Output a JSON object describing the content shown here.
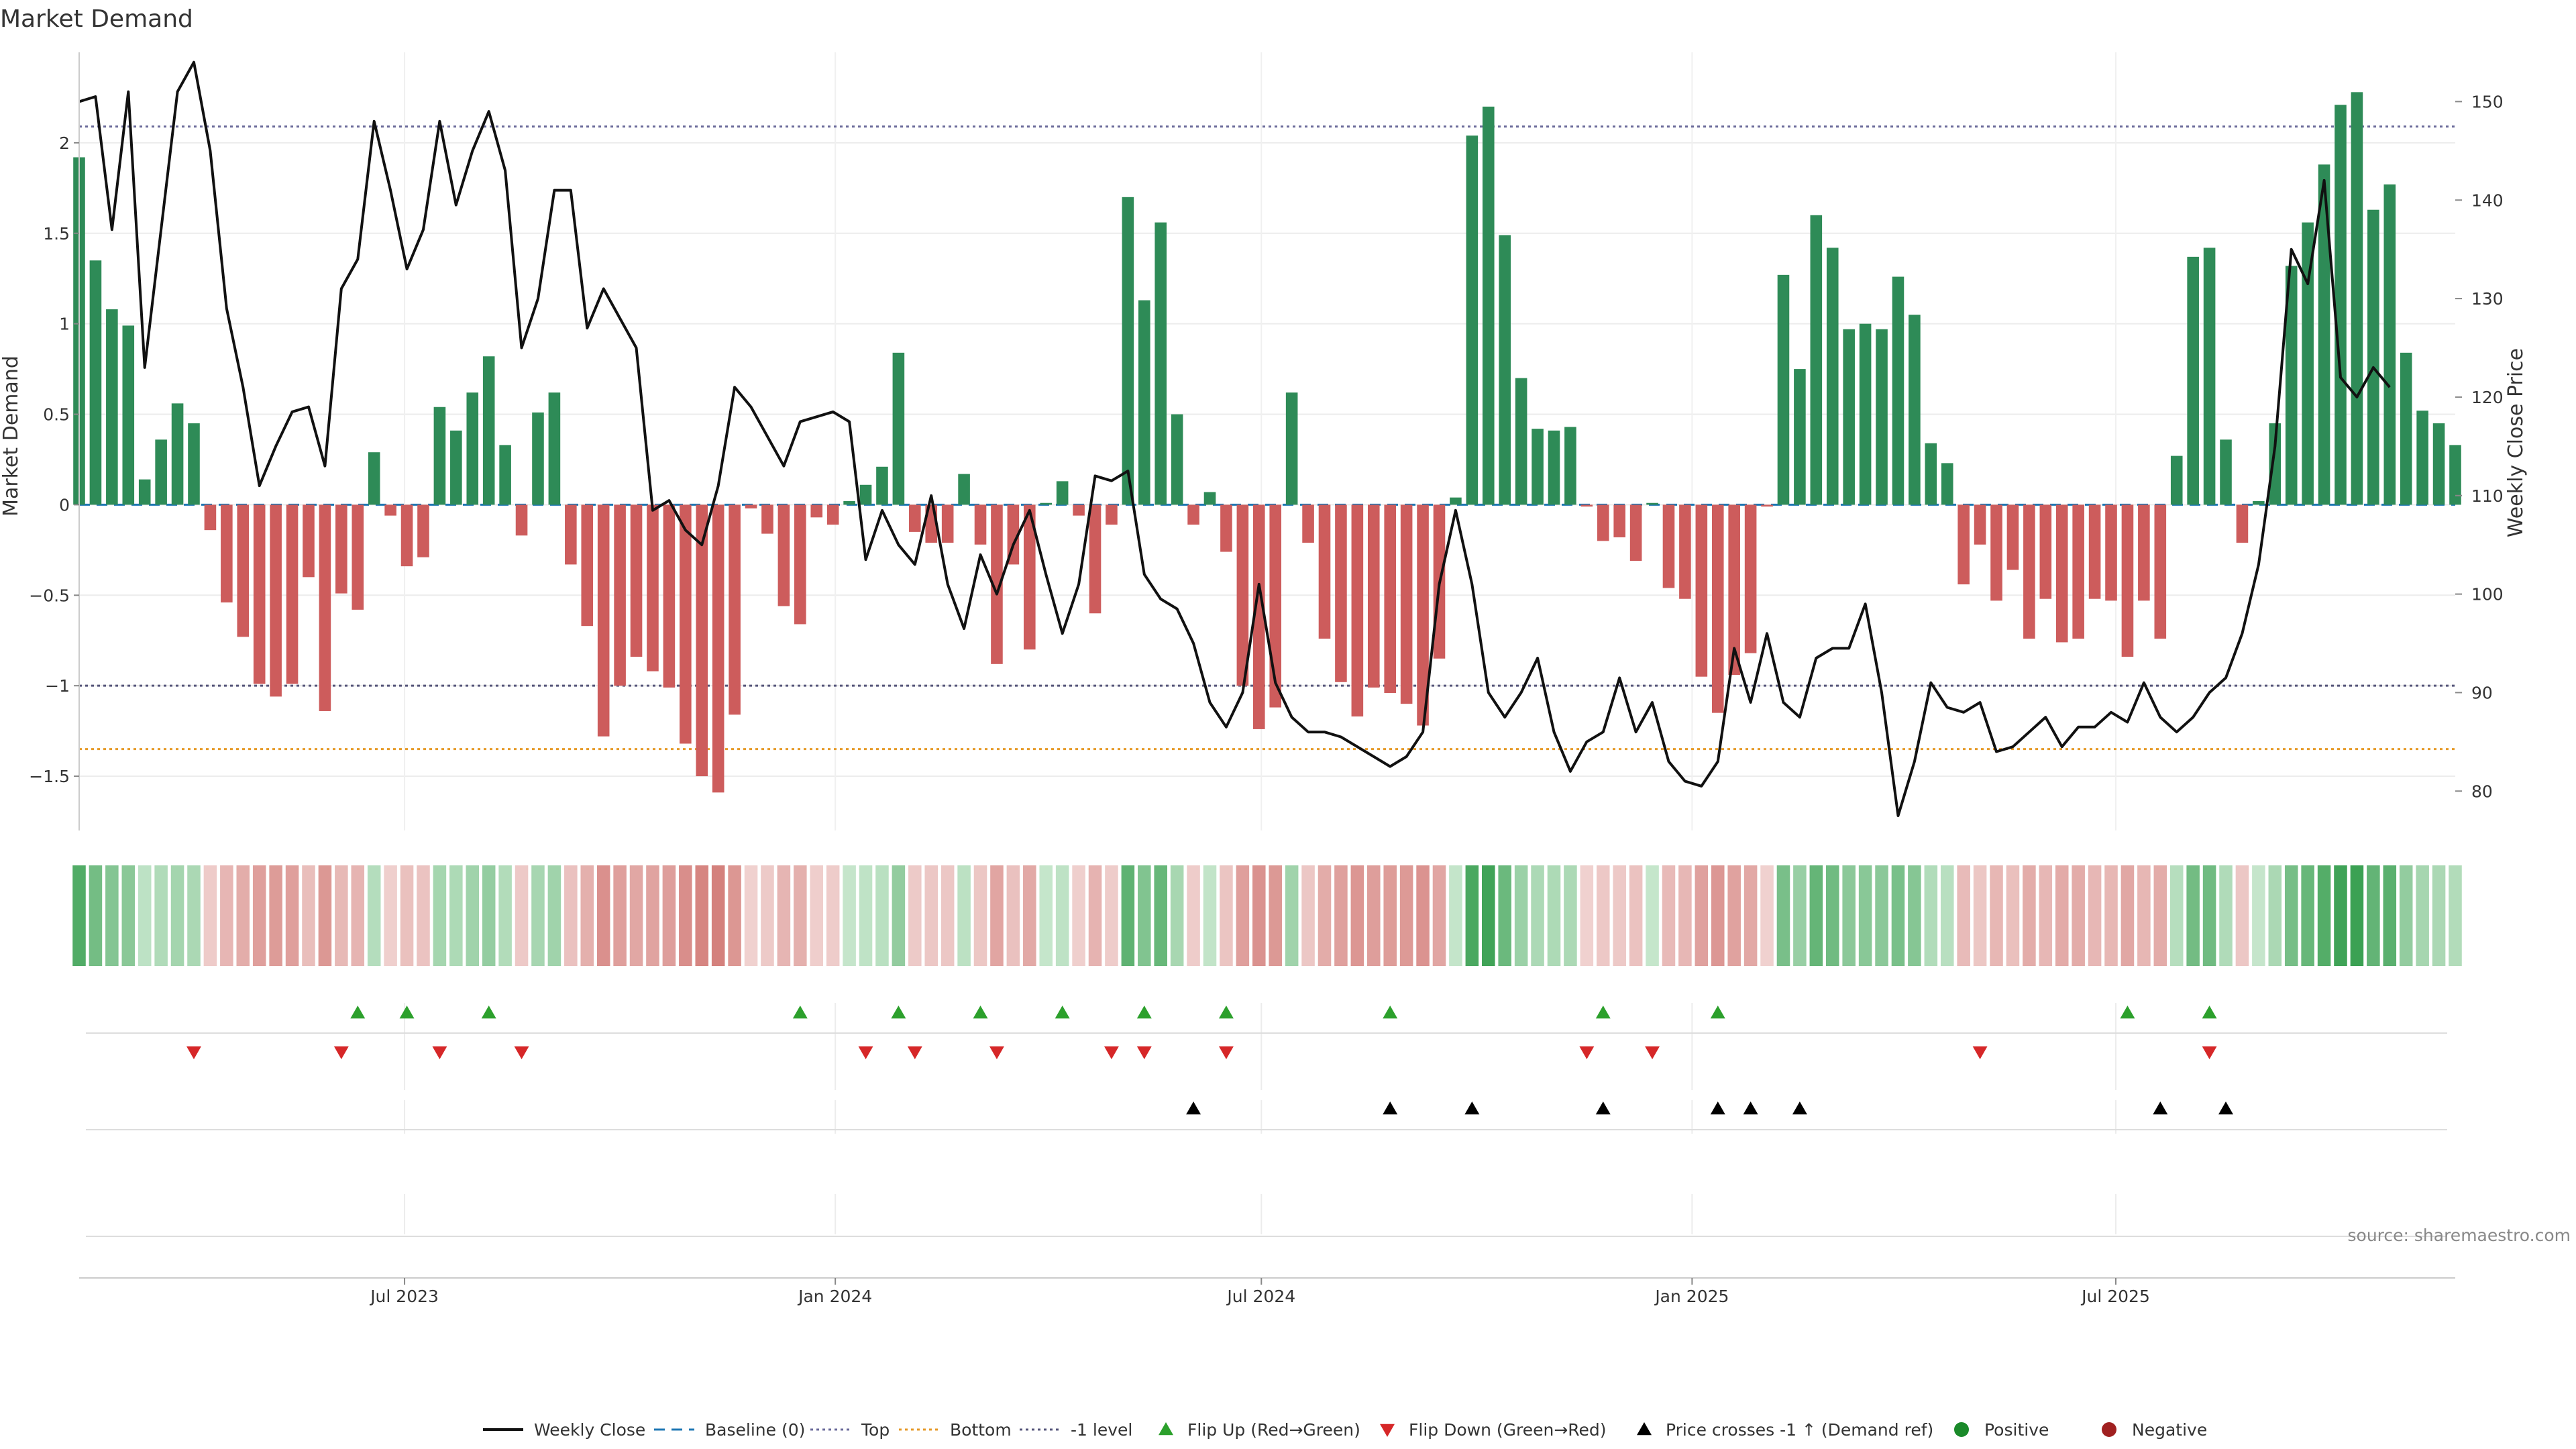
{
  "chart_data": {
    "type": "bar+line",
    "title": "Market Demand",
    "ylabel": "Market Demand",
    "ylabel_right": "Weekly Close Price",
    "ylim": [
      -1.8,
      2.5
    ],
    "ylim_right": [
      76,
      155
    ],
    "y_ticks": [
      -1.5,
      -1,
      -0.5,
      0,
      0.5,
      1,
      1.5,
      2
    ],
    "y_tick_labels": [
      "−1.5",
      "−1",
      "−0.5",
      "0",
      "0.5",
      "1",
      "1.5",
      "2"
    ],
    "y_right_ticks": [
      80,
      90,
      100,
      110,
      120,
      130,
      140,
      150
    ],
    "x_date_range": [
      "2023-02-12",
      "2025-11-23"
    ],
    "x_ticks": [
      {
        "date": "2023-07-01",
        "label": "Jul 2023"
      },
      {
        "date": "2024-01-01",
        "label": "Jan 2024"
      },
      {
        "date": "2024-07-01",
        "label": "Jul 2024"
      },
      {
        "date": "2025-01-01",
        "label": "Jan 2025"
      },
      {
        "date": "2025-07-01",
        "label": "Jul 2025"
      }
    ],
    "reference_lines": {
      "top": 2.09,
      "bottom": -1.35,
      "minus_one": -1
    },
    "start_date": "2023-02-12",
    "week_step_days": 7,
    "demand": [
      1.92,
      1.35,
      1.08,
      0.99,
      0.14,
      0.36,
      0.56,
      0.45,
      -0.14,
      -0.54,
      -0.73,
      -0.99,
      -1.06,
      -0.99,
      -0.4,
      -1.14,
      -0.49,
      -0.58,
      0.29,
      -0.06,
      -0.34,
      -0.29,
      0.54,
      0.41,
      0.62,
      0.82,
      0.33,
      -0.17,
      0.51,
      0.62,
      -0.33,
      -0.67,
      -1.28,
      -1.0,
      -0.84,
      -0.92,
      -1.01,
      -1.32,
      -1.5,
      -1.59,
      -1.16,
      -0.02,
      -0.16,
      -0.56,
      -0.66,
      -0.07,
      -0.11,
      0.02,
      0.11,
      0.21,
      0.84,
      -0.15,
      -0.21,
      -0.21,
      0.17,
      -0.22,
      -0.88,
      -0.33,
      -0.8,
      0.01,
      0.13,
      -0.06,
      -0.6,
      -0.11,
      1.7,
      1.13,
      1.56,
      0.5,
      -0.11,
      0.07,
      -0.26,
      -1.0,
      -1.24,
      -1.12,
      0.62,
      -0.21,
      -0.74,
      -0.98,
      -1.17,
      -1.01,
      -1.04,
      -1.1,
      -1.22,
      -0.85,
      0.04,
      2.04,
      2.2,
      1.49,
      0.7,
      0.42,
      0.41,
      0.43,
      -0.01,
      -0.2,
      -0.18,
      -0.31,
      0.01,
      -0.46,
      -0.52,
      -0.95,
      -1.15,
      -0.94,
      -0.82,
      -0.01,
      1.27,
      0.75,
      1.6,
      1.42,
      0.97,
      1.0,
      0.97,
      1.26,
      1.05,
      0.34,
      0.23,
      -0.44,
      -0.22,
      -0.53,
      -0.36,
      -0.74,
      -0.52,
      -0.76,
      -0.74,
      -0.52,
      -0.53,
      -0.84,
      -0.53,
      -0.74,
      0.27,
      1.37,
      1.42,
      0.36,
      -0.21,
      0.02,
      0.45,
      1.32,
      1.56,
      1.88,
      2.21,
      2.28,
      1.63,
      1.77,
      0.84,
      0.52,
      0.45,
      0.33
    ],
    "price": [
      150,
      150.5,
      137,
      151,
      123,
      137,
      151,
      154,
      145,
      129,
      121,
      111,
      115,
      118.5,
      119,
      113,
      131,
      134,
      148,
      141,
      133,
      137,
      148,
      139.5,
      145,
      149,
      143,
      125,
      130,
      141,
      141,
      127,
      131,
      128,
      125,
      108.5,
      109.5,
      106.5,
      105,
      111,
      121,
      119,
      116,
      113,
      117.5,
      118,
      118.5,
      117.5,
      103.5,
      108.5,
      105,
      103,
      110,
      101,
      96.5,
      104,
      100,
      105,
      108.5,
      102,
      96,
      101,
      112,
      111.5,
      112.5,
      102,
      99.5,
      98.5,
      95,
      89,
      86.5,
      90,
      101,
      91,
      87.5,
      86,
      86,
      85.5,
      84.5,
      83.5,
      82.5,
      83.5,
      86,
      101,
      108.5,
      101,
      90,
      87.5,
      90,
      93.5,
      86,
      82,
      85,
      86,
      91.5,
      86,
      89,
      83,
      81,
      80.5,
      83,
      94.5,
      89,
      96,
      89,
      87.5,
      93.5,
      94.5,
      94.5,
      99,
      90,
      77.5,
      83,
      91,
      88.5,
      88,
      89,
      84,
      84.5,
      86,
      87.5,
      84.5,
      86.5,
      86.5,
      88,
      87,
      91,
      87.5,
      86,
      87.5,
      90,
      91.5,
      96,
      103,
      115,
      135,
      131.5,
      142,
      122,
      120,
      123,
      121
    ],
    "flip_up_dates": [
      "2023-06-11",
      "2023-07-02",
      "2023-08-06",
      "2023-12-17",
      "2024-01-28",
      "2024-03-03",
      "2024-04-07",
      "2024-05-12",
      "2024-06-16",
      "2024-08-25",
      "2024-11-24",
      "2025-01-12",
      "2025-07-06",
      "2025-08-10"
    ],
    "flip_down_dates": [
      "2023-04-02",
      "2023-06-04",
      "2023-07-16",
      "2023-08-20",
      "2024-01-14",
      "2024-02-04",
      "2024-03-10",
      "2024-04-28",
      "2024-05-12",
      "2024-06-16",
      "2024-11-17",
      "2024-12-15",
      "2025-05-04",
      "2025-08-10"
    ],
    "price_cross_dates": [
      "2024-06-02",
      "2024-08-25",
      "2024-09-29",
      "2024-11-24",
      "2025-01-12",
      "2025-01-26",
      "2025-02-16",
      "2025-07-20",
      "2025-08-17"
    ],
    "legend": [
      {
        "key": "weekly_close",
        "label": "Weekly Close"
      },
      {
        "key": "baseline",
        "label": "Baseline (0)"
      },
      {
        "key": "top",
        "label": "Top"
      },
      {
        "key": "bottom",
        "label": "Bottom"
      },
      {
        "key": "minus_one",
        "label": "-1 level"
      },
      {
        "key": "flip_up",
        "label": "Flip Up (Red→Green)"
      },
      {
        "key": "flip_down",
        "label": "Flip Down (Green→Red)"
      },
      {
        "key": "price_cross",
        "label": "Price crosses -1 ↑ (Demand ref)"
      },
      {
        "key": "positive",
        "label": "Positive"
      },
      {
        "key": "negative",
        "label": "Negative"
      }
    ],
    "source": "source: sharemaestro.com",
    "colors": {
      "positive": "#2e8b57",
      "negative": "#cd5c5c",
      "price": "#111111",
      "baseline": "#1f77b4",
      "top": "#6a6a9a",
      "bottom": "#e69a28",
      "minus_one": "#55557a",
      "flip_up": "#2ca02c",
      "flip_down": "#d62728",
      "cross": "#000000",
      "positive_dot": "#1a8a2a",
      "negative_dot": "#a02020"
    }
  }
}
